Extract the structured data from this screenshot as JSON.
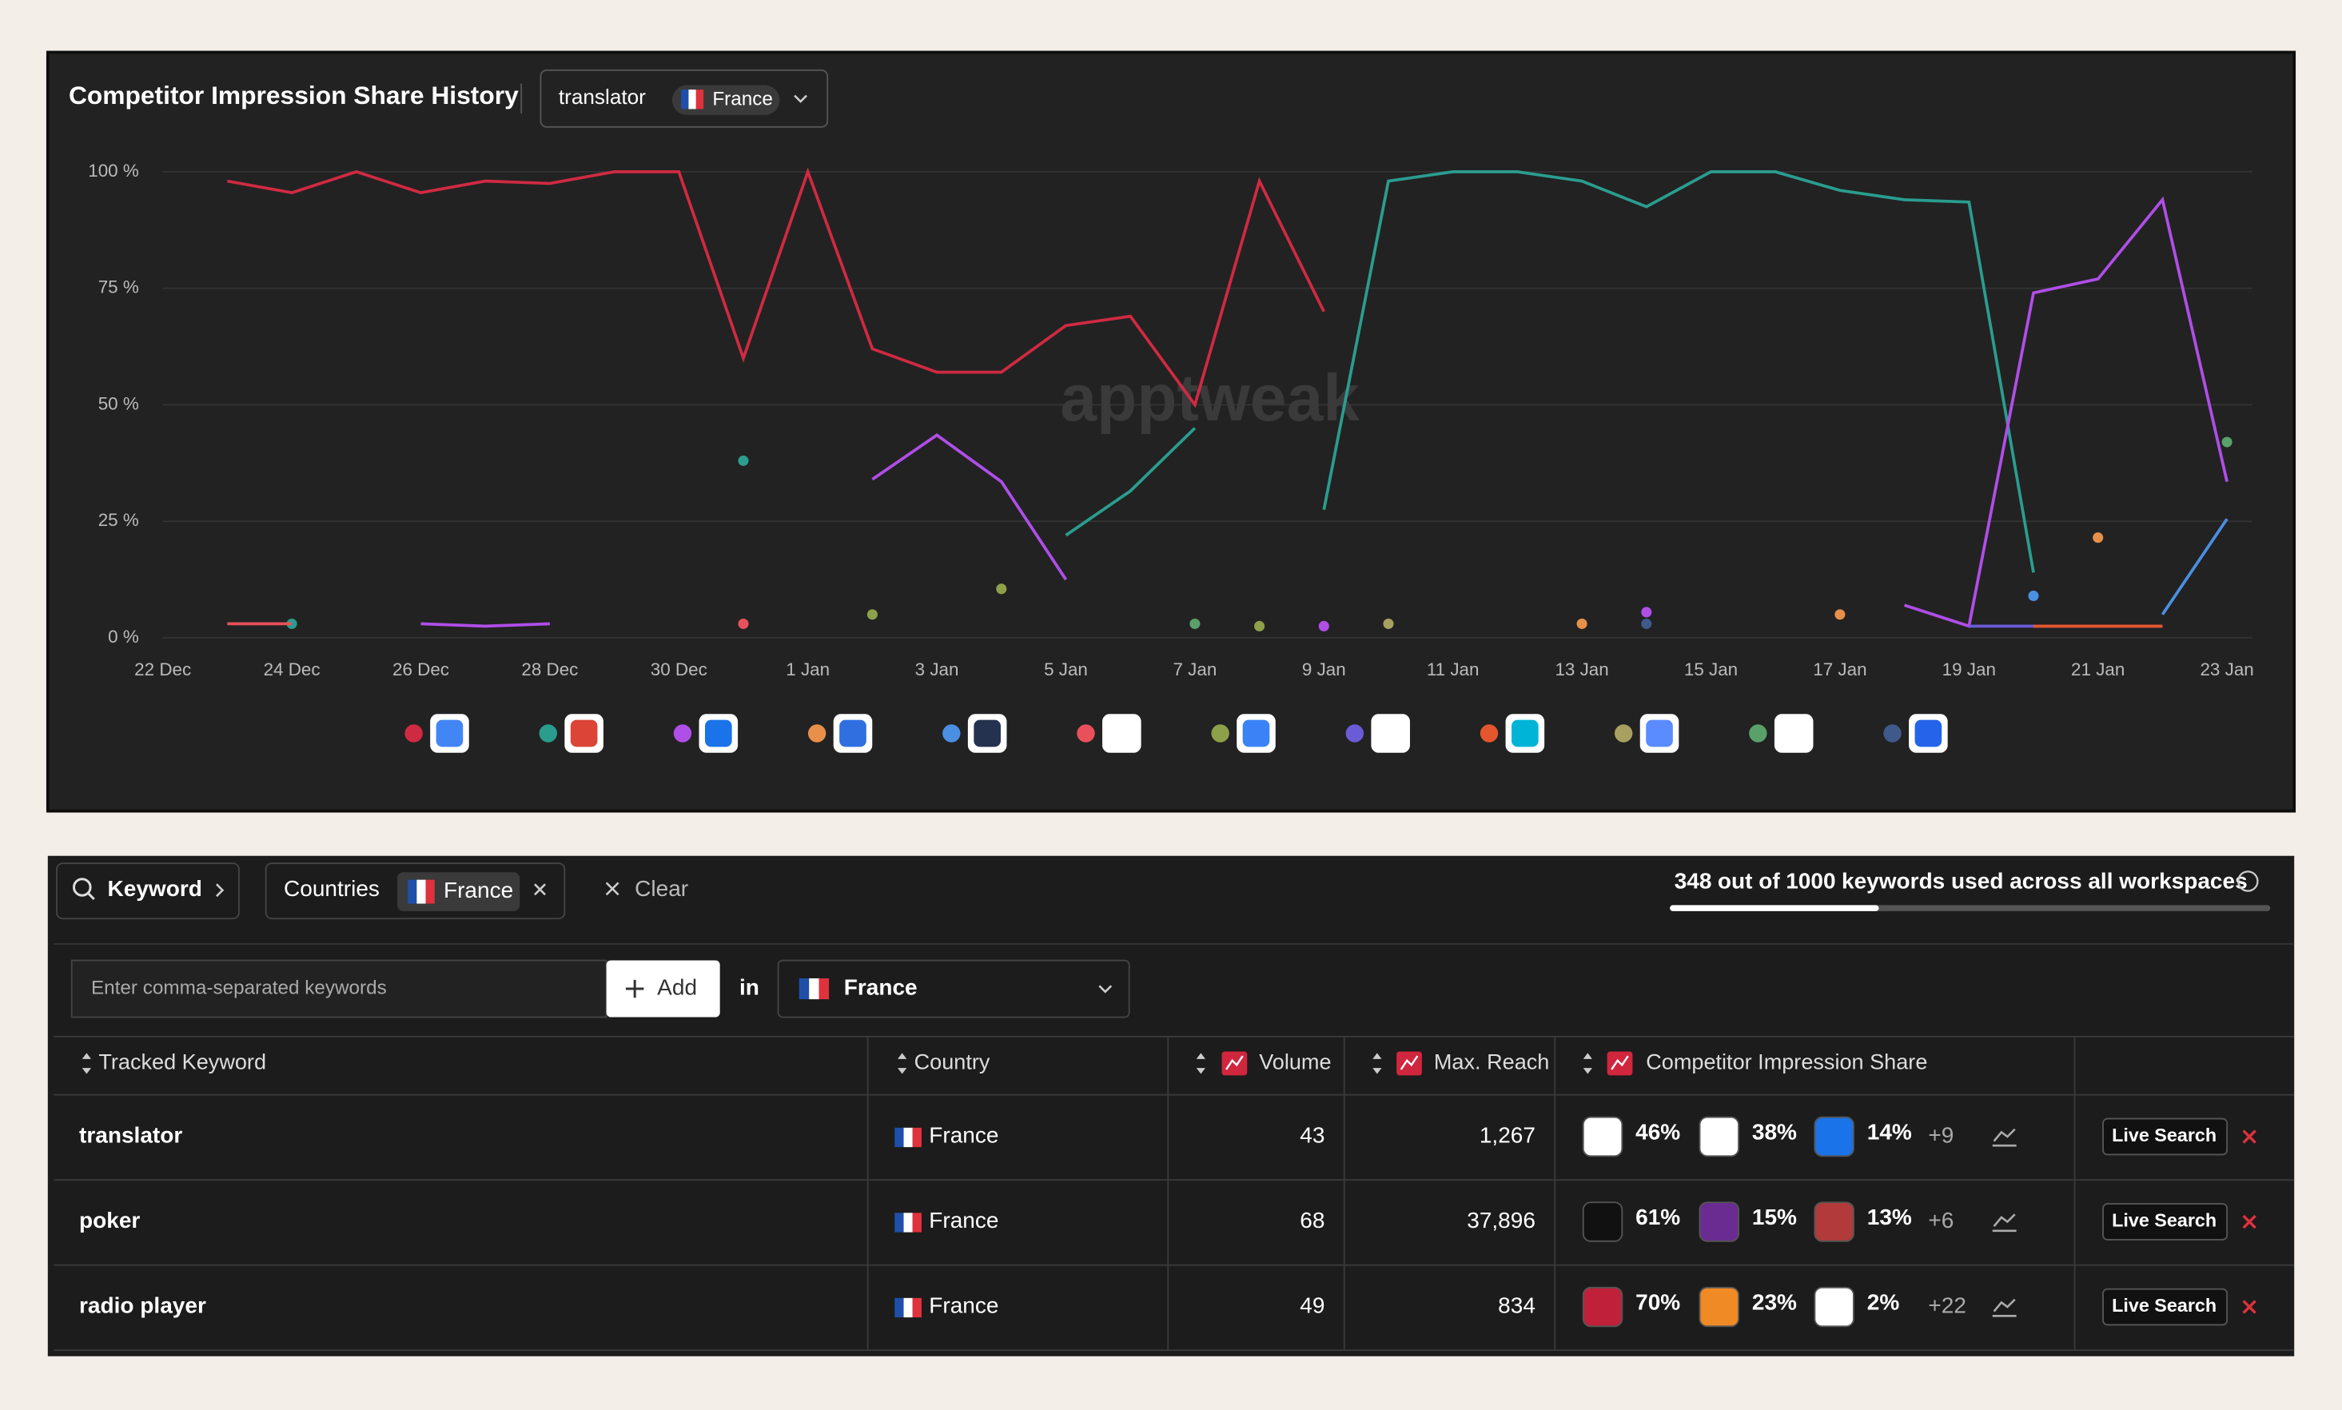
{
  "chart_data": {
    "type": "line",
    "title": "Competitor Impression Share History",
    "keyword": "translator",
    "country": "France",
    "watermark": "apptweak",
    "categories": [
      "22 Dec",
      null,
      "24 Dec",
      null,
      "26 Dec",
      null,
      "28 Dec",
      null,
      "30 Dec",
      null,
      "1 Jan",
      null,
      "3 Jan",
      null,
      "5 Jan",
      null,
      "7 Jan",
      null,
      "9 Jan",
      null,
      "11 Jan",
      null,
      "13 Jan",
      null,
      "15 Jan",
      null,
      "17 Jan",
      null,
      "19 Jan",
      null,
      "21 Jan",
      null,
      "23 Jan"
    ],
    "ylim": [
      0,
      100
    ],
    "yticks": [
      {
        "value": 0,
        "label": "0 %"
      },
      {
        "value": 25,
        "label": "25 %"
      },
      {
        "value": 50,
        "label": "50 %"
      },
      {
        "value": 75,
        "label": "75 %"
      },
      {
        "value": 100,
        "label": "100 %"
      }
    ],
    "grid": true,
    "series": [
      {
        "color": "#d02a42",
        "values": [
          null,
          98,
          95.5,
          100,
          95.5,
          98,
          97.5,
          100,
          100,
          60,
          100,
          62,
          57,
          57,
          67,
          69,
          50,
          98,
          70,
          null,
          null,
          null,
          null,
          null,
          null,
          null,
          null,
          null,
          null,
          null,
          null,
          null,
          null
        ]
      },
      {
        "color": "#2a9d8f",
        "values": [
          null,
          null,
          3,
          null,
          null,
          null,
          null,
          null,
          null,
          38,
          null,
          null,
          null,
          null,
          22,
          31.5,
          45,
          null,
          27.5,
          98,
          100,
          100,
          98,
          92.5,
          100,
          100,
          96,
          94,
          93.5,
          14,
          null,
          null,
          null
        ]
      },
      {
        "color": "#b04ee8",
        "values": [
          null,
          null,
          null,
          null,
          3,
          2.5,
          3,
          null,
          null,
          null,
          null,
          34,
          43.5,
          33.5,
          12.5,
          null,
          null,
          null,
          2.5,
          null,
          null,
          null,
          null,
          5.5,
          null,
          null,
          null,
          7,
          2.5,
          74,
          77,
          94,
          33.5
        ]
      },
      {
        "color": "#e8904a",
        "values": [
          null,
          null,
          null,
          null,
          null,
          null,
          null,
          null,
          null,
          null,
          null,
          null,
          null,
          null,
          null,
          null,
          null,
          null,
          null,
          null,
          null,
          null,
          3,
          null,
          null,
          null,
          5,
          null,
          null,
          null,
          21.5,
          null,
          null
        ]
      },
      {
        "color": "#4a8fe2",
        "values": [
          null,
          null,
          null,
          null,
          null,
          null,
          null,
          null,
          null,
          null,
          null,
          null,
          null,
          null,
          null,
          null,
          null,
          null,
          null,
          null,
          null,
          null,
          null,
          null,
          null,
          null,
          null,
          null,
          null,
          9,
          null,
          5,
          25.5
        ]
      },
      {
        "color": "#e8505b",
        "values": [
          null,
          3,
          3,
          null,
          null,
          null,
          null,
          null,
          null,
          3,
          null,
          null,
          null,
          null,
          null,
          null,
          null,
          null,
          null,
          null,
          null,
          null,
          null,
          null,
          null,
          null,
          null,
          null,
          null,
          null,
          null,
          null,
          null
        ]
      },
      {
        "color": "#8fa04a",
        "values": [
          null,
          null,
          null,
          null,
          null,
          null,
          null,
          null,
          null,
          null,
          null,
          5,
          null,
          10.5,
          null,
          null,
          null,
          2.5,
          null,
          null,
          null,
          null,
          null,
          null,
          null,
          null,
          null,
          null,
          null,
          null,
          null,
          null,
          null
        ]
      },
      {
        "color": "#6b5bd6",
        "values": [
          null,
          null,
          null,
          null,
          null,
          null,
          null,
          null,
          null,
          null,
          null,
          null,
          null,
          null,
          null,
          null,
          null,
          null,
          null,
          null,
          null,
          null,
          null,
          null,
          null,
          null,
          null,
          null,
          2.5,
          2.5,
          2.5,
          2.5,
          null
        ]
      },
      {
        "color": "#e5562f",
        "values": [
          null,
          null,
          null,
          null,
          null,
          null,
          null,
          null,
          null,
          null,
          null,
          null,
          null,
          null,
          null,
          null,
          null,
          null,
          null,
          null,
          null,
          null,
          null,
          null,
          null,
          null,
          null,
          null,
          null,
          2.5,
          2.5,
          2.5,
          null
        ]
      },
      {
        "color": "#a8a060",
        "values": [
          null,
          null,
          null,
          null,
          null,
          null,
          null,
          null,
          null,
          null,
          null,
          null,
          null,
          null,
          null,
          null,
          null,
          null,
          null,
          3,
          null,
          null,
          null,
          null,
          null,
          null,
          null,
          null,
          null,
          null,
          null,
          null,
          null
        ]
      },
      {
        "color": "#5aa06a",
        "values": [
          null,
          null,
          null,
          null,
          null,
          null,
          null,
          null,
          null,
          null,
          null,
          null,
          null,
          null,
          null,
          null,
          3,
          null,
          null,
          null,
          null,
          null,
          null,
          null,
          null,
          null,
          null,
          null,
          null,
          null,
          null,
          null,
          42
        ]
      },
      {
        "color": "#3f5a8a",
        "values": [
          null,
          null,
          null,
          null,
          null,
          null,
          null,
          null,
          null,
          null,
          null,
          null,
          null,
          null,
          null,
          null,
          null,
          null,
          null,
          null,
          null,
          null,
          null,
          3,
          null,
          null,
          null,
          null,
          null,
          null,
          null,
          null,
          null
        ]
      }
    ]
  },
  "filters": {
    "keyword": "Keyword",
    "countries": "Countries",
    "country": "France",
    "clear": "Clear",
    "usage": {
      "used": 348,
      "of": "out of",
      "total": 1000,
      "label": "keywords used across all workspaces"
    }
  },
  "add_form": {
    "placeholder": "Enter comma-separated keywords",
    "add": "Add",
    "in": "in",
    "country": "France"
  },
  "table": {
    "columns": [
      "Tracked Keyword",
      "Country",
      "Volume",
      "Max. Reach",
      "Competitor Impression Share"
    ],
    "rows": [
      {
        "keyword": "translator",
        "country": "France",
        "volume": "43",
        "reach": "1,267",
        "shares": [
          "46%",
          "38%",
          "14%"
        ],
        "more": "+9",
        "action": "Live Search"
      },
      {
        "keyword": "poker",
        "country": "France",
        "volume": "68",
        "reach": "37,896",
        "shares": [
          "61%",
          "15%",
          "13%"
        ],
        "more": "+6",
        "action": "Live Search"
      },
      {
        "keyword": "radio player",
        "country": "France",
        "volume": "49",
        "reach": "834",
        "shares": [
          "70%",
          "23%",
          "2%"
        ],
        "more": "+22",
        "action": "Live Search"
      }
    ]
  }
}
